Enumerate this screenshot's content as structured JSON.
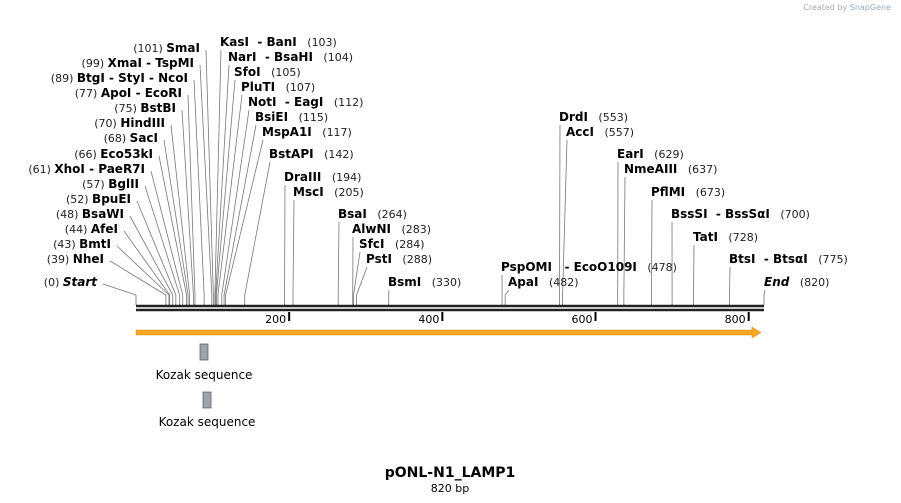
{
  "credit": {
    "prefix": "Created by",
    "brand": "SnapGene"
  },
  "title": "pONL-N1_LAMP1",
  "length_label": "820 bp",
  "length_bp": 820,
  "ticks": [
    "200",
    "400",
    "600",
    "800"
  ],
  "colors": {
    "backbone": "#222222",
    "feature": "#f5a623",
    "kozak": "#9ea3ad"
  },
  "features": [
    {
      "name": "Kozak sequence"
    },
    {
      "name": "Kozak sequence"
    }
  ],
  "sites": [
    {
      "label": "SmaI",
      "pos": 101,
      "pos_text": "(101)"
    },
    {
      "label": "XmaI  - TspMI",
      "pos": 99,
      "pos_text": "(99)"
    },
    {
      "label": "BtgI  - StyI  - NcoI",
      "pos": 89,
      "pos_text": "(89)"
    },
    {
      "label": "ApoI  - EcoRI",
      "pos": 77,
      "pos_text": "(77)"
    },
    {
      "label": "BstBI",
      "pos": 75,
      "pos_text": "(75)"
    },
    {
      "label": "HindIII",
      "pos": 70,
      "pos_text": "(70)"
    },
    {
      "label": "SacI",
      "pos": 68,
      "pos_text": "(68)"
    },
    {
      "label": "Eco53kI",
      "pos": 66,
      "pos_text": "(66)"
    },
    {
      "label": "XhoI  - PaeR7I",
      "pos": 61,
      "pos_text": "(61)"
    },
    {
      "label": "BglII",
      "pos": 57,
      "pos_text": "(57)"
    },
    {
      "label": "BpuEI",
      "pos": 52,
      "pos_text": "(52)"
    },
    {
      "label": "BsaWI",
      "pos": 48,
      "pos_text": "(48)"
    },
    {
      "label": "AfeI",
      "pos": 44,
      "pos_text": "(44)"
    },
    {
      "label": "BmtI",
      "pos": 43,
      "pos_text": "(43)"
    },
    {
      "label": "NheI",
      "pos": 39,
      "pos_text": "(39)"
    },
    {
      "label": "Start",
      "pos": 0,
      "pos_text": "(0)"
    },
    {
      "label": "KasI  - BanI",
      "pos": 103,
      "pos_text": "(103)"
    },
    {
      "label": "NarI  - BsaHI",
      "pos": 104,
      "pos_text": "(104)"
    },
    {
      "label": "SfoI",
      "pos": 105,
      "pos_text": "(105)"
    },
    {
      "label": "PluTI",
      "pos": 107,
      "pos_text": "(107)"
    },
    {
      "label": "NotI  - EagI",
      "pos": 112,
      "pos_text": "(112)"
    },
    {
      "label": "BsiEI",
      "pos": 115,
      "pos_text": "(115)"
    },
    {
      "label": "MspA1I",
      "pos": 117,
      "pos_text": "(117)"
    },
    {
      "label": "BstAPI",
      "pos": 142,
      "pos_text": "(142)"
    },
    {
      "label": "DraIII",
      "pos": 194,
      "pos_text": "(194)"
    },
    {
      "label": "MscI",
      "pos": 205,
      "pos_text": "(205)"
    },
    {
      "label": "BsaI",
      "pos": 264,
      "pos_text": "(264)"
    },
    {
      "label": "AlwNI",
      "pos": 283,
      "pos_text": "(283)"
    },
    {
      "label": "SfcI",
      "pos": 284,
      "pos_text": "(284)"
    },
    {
      "label": "PstI",
      "pos": 288,
      "pos_text": "(288)"
    },
    {
      "label": "BsmI",
      "pos": 330,
      "pos_text": "(330)"
    },
    {
      "label": "PspOMI   - EcoO109I",
      "pos": 478,
      "pos_text": "(478)"
    },
    {
      "label": "ApaI",
      "pos": 482,
      "pos_text": "(482)"
    },
    {
      "label": "DrdI",
      "pos": 553,
      "pos_text": "(553)"
    },
    {
      "label": "AccI",
      "pos": 557,
      "pos_text": "(557)"
    },
    {
      "label": "EarI",
      "pos": 629,
      "pos_text": "(629)"
    },
    {
      "label": "NmeAIII",
      "pos": 637,
      "pos_text": "(637)"
    },
    {
      "label": "PflMI",
      "pos": 673,
      "pos_text": "(673)"
    },
    {
      "label": "BssSI  - BssSαI",
      "pos": 700,
      "pos_text": "(700)"
    },
    {
      "label": "TatI",
      "pos": 728,
      "pos_text": "(728)"
    },
    {
      "label": "BtsI  - BtsαI",
      "pos": 775,
      "pos_text": "(775)"
    },
    {
      "label": "End",
      "pos": 820,
      "pos_text": "(820)"
    }
  ]
}
